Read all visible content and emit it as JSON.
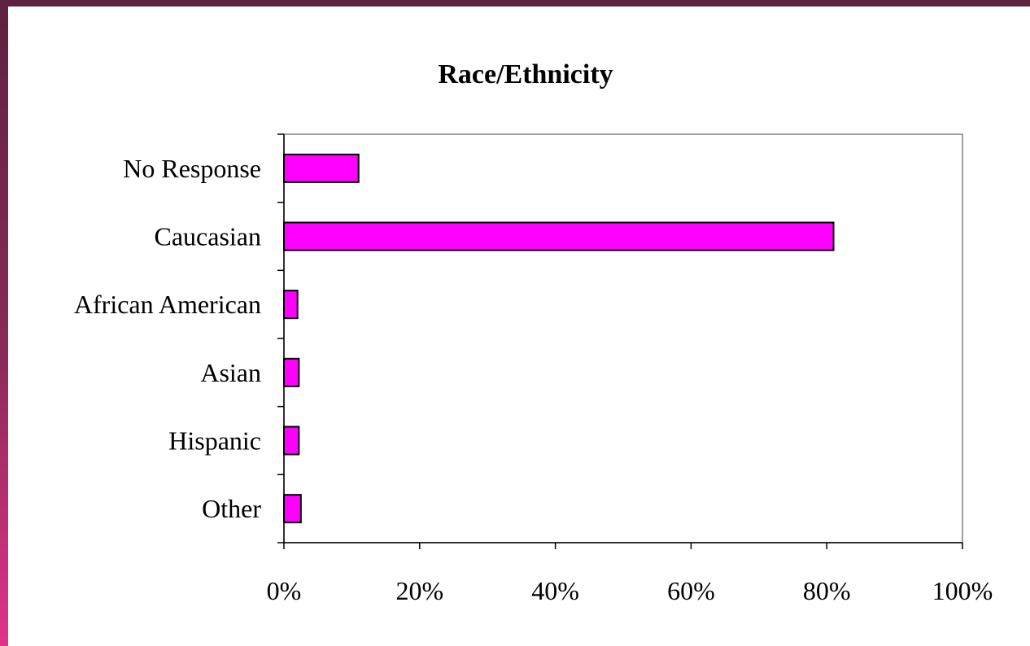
{
  "chart_data": {
    "type": "bar",
    "orientation": "horizontal",
    "title": "Race/Ethnicity",
    "xlabel": "",
    "ylabel": "",
    "categories": [
      "No Response",
      "Caucasian",
      "African American",
      "Asian",
      "Hispanic",
      "Other"
    ],
    "values": [
      11,
      81,
      2,
      2.2,
      2.2,
      2.5
    ],
    "xlim": [
      0,
      100
    ],
    "x_ticks": [
      0,
      20,
      40,
      60,
      80,
      100
    ],
    "x_tick_labels": [
      "0%",
      "20%",
      "40%",
      "60%",
      "80%",
      "100%"
    ],
    "grid": false,
    "legend": "none",
    "colors": {
      "bar_fill": "#ff00ff",
      "bar_stroke": "#000000",
      "frame_top": "#5e2140",
      "frame_bottom": "#e0338a"
    }
  }
}
